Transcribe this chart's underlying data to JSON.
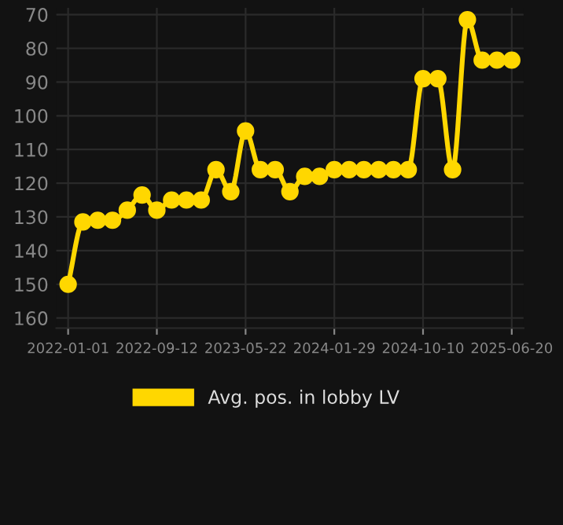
{
  "chart_data": {
    "type": "line",
    "categories": [
      "2022-01-01",
      null,
      null,
      null,
      null,
      null,
      "2022-09-12",
      null,
      null,
      null,
      null,
      null,
      "2023-05-22",
      null,
      null,
      null,
      null,
      null,
      "2024-01-29",
      null,
      null,
      null,
      null,
      null,
      "2024-10-10",
      null,
      null,
      null,
      null,
      null,
      "2025-06-20"
    ],
    "series": [
      {
        "name": "Avg. pos. in lobby LV",
        "color": "#ffd700",
        "values": [
          150,
          131.5,
          131,
          131,
          128,
          123.5,
          128,
          125,
          125,
          125,
          116,
          122.5,
          104.5,
          116,
          116,
          122.5,
          118,
          118,
          116,
          116,
          116,
          116,
          116,
          116,
          89,
          89,
          116,
          71.5,
          83.5,
          83.5,
          83.5
        ]
      }
    ],
    "ylim": [
      163,
      68
    ],
    "yticks": [
      70,
      80,
      90,
      100,
      110,
      120,
      130,
      140,
      150,
      160
    ],
    "grid": true,
    "legend": "bottom",
    "marker": "circle",
    "line_style": "solid"
  }
}
